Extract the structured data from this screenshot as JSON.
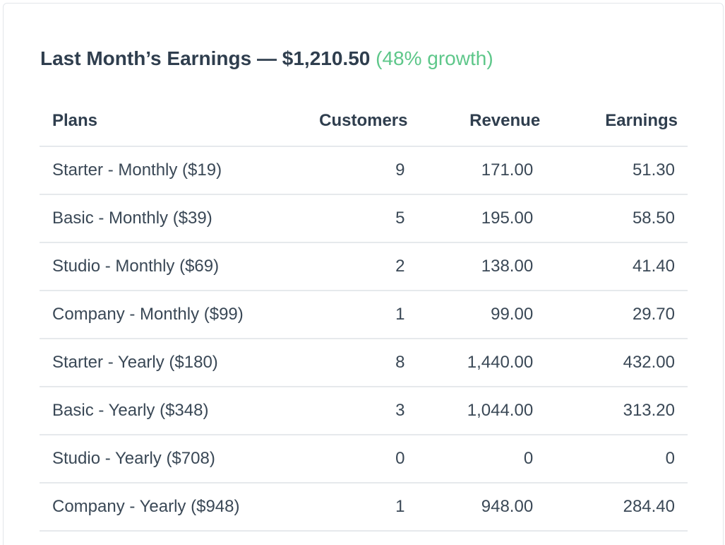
{
  "header": {
    "label": "Last Month’s Earnings",
    "separator": "—",
    "amount": "$1,210.50",
    "growth": "(48% growth)"
  },
  "table": {
    "columns": {
      "plans": "Plans",
      "customers": "Customers",
      "revenue": "Revenue",
      "earnings": "Earnings"
    },
    "rows": [
      {
        "plan": "Starter - Monthly ($19)",
        "customers": "9",
        "revenue": "171.00",
        "earnings": "51.30"
      },
      {
        "plan": "Basic - Monthly ($39)",
        "customers": "5",
        "revenue": "195.00",
        "earnings": "58.50"
      },
      {
        "plan": "Studio - Monthly ($69)",
        "customers": "2",
        "revenue": "138.00",
        "earnings": "41.40"
      },
      {
        "plan": "Company - Monthly ($99)",
        "customers": "1",
        "revenue": "99.00",
        "earnings": "29.70"
      },
      {
        "plan": "Starter - Yearly ($180)",
        "customers": "8",
        "revenue": "1,440.00",
        "earnings": "432.00"
      },
      {
        "plan": "Basic - Yearly ($348)",
        "customers": "3",
        "revenue": "1,044.00",
        "earnings": "313.20"
      },
      {
        "plan": "Studio - Yearly ($708)",
        "customers": "0",
        "revenue": "0",
        "earnings": "0"
      },
      {
        "plan": "Company - Yearly ($948)",
        "customers": "1",
        "revenue": "948.00",
        "earnings": "284.40"
      }
    ]
  },
  "colors": {
    "text": "#2f3e4e",
    "growth": "#5ec78a",
    "divider": "#e6e9ec"
  }
}
